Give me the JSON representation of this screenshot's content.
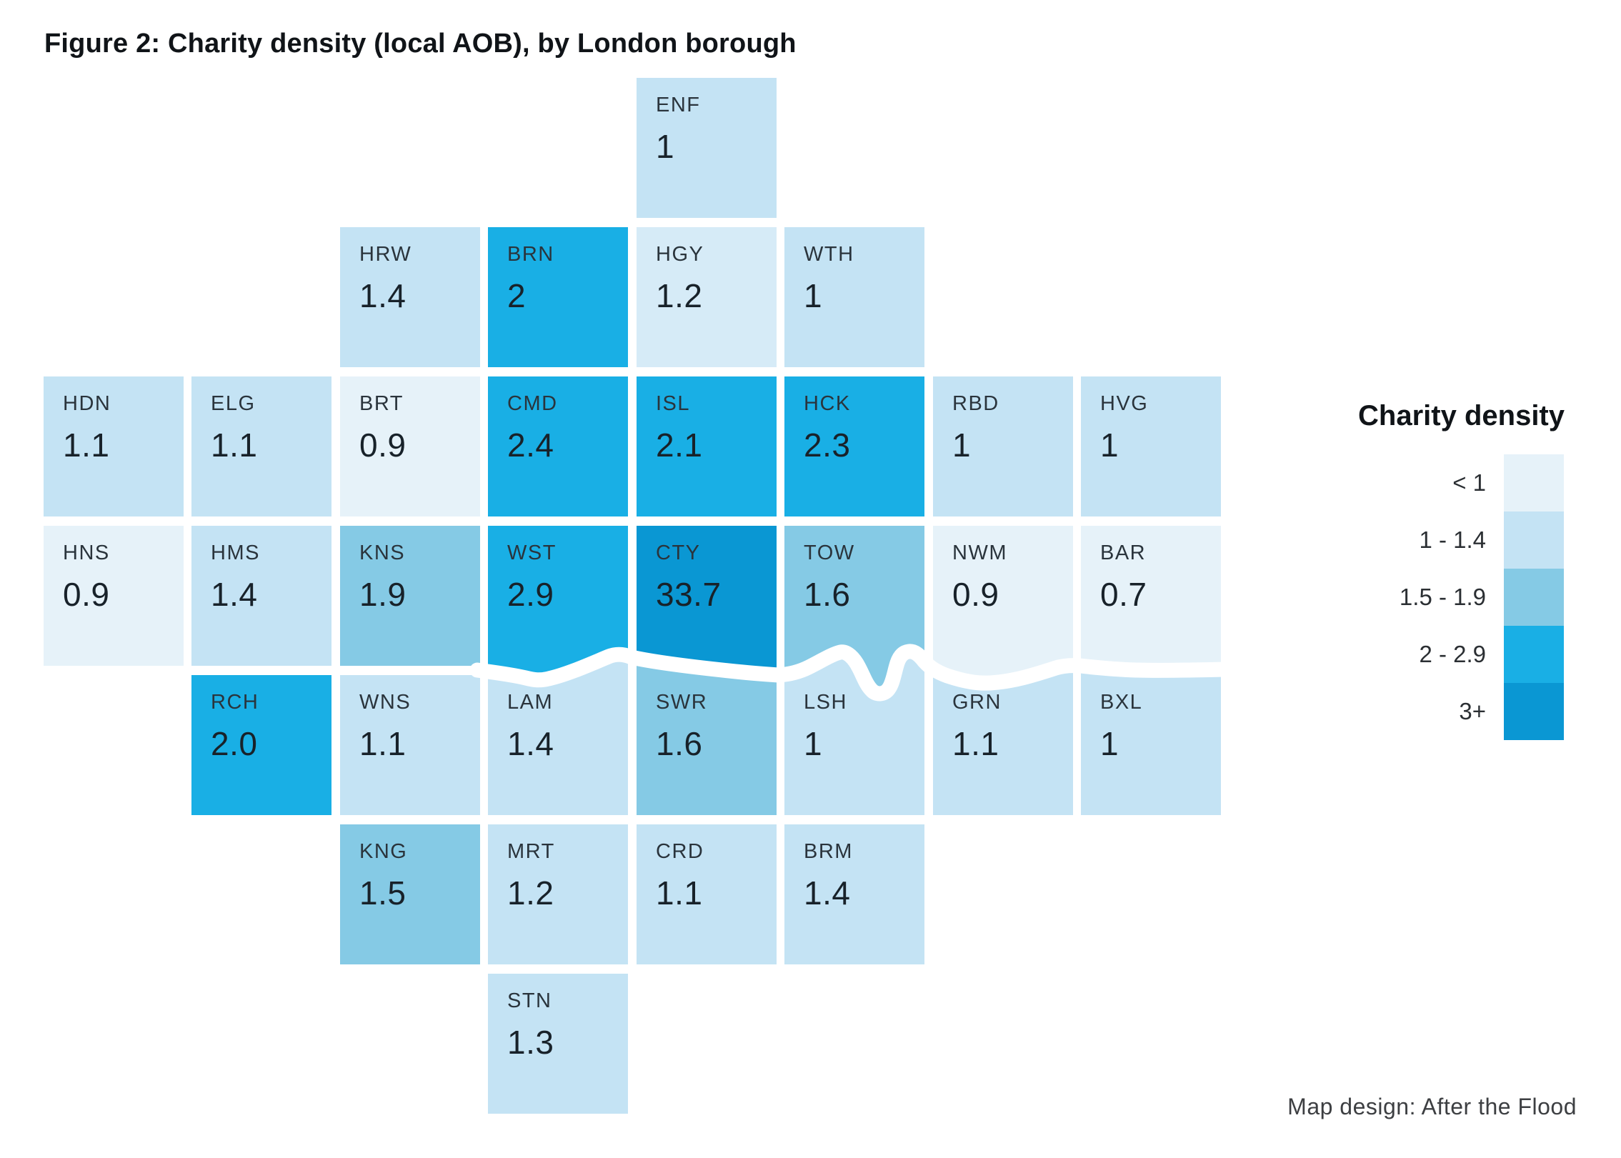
{
  "page": {
    "title": "Figure 2: Charity density (local AOB), by London borough"
  },
  "legend": {
    "title": "Charity density",
    "bins": [
      {
        "label": "< 1",
        "color_key": "pale"
      },
      {
        "label": "1 - 1.4",
        "color_key": "light"
      },
      {
        "label": "1.5 - 1.9",
        "color_key": "medium"
      },
      {
        "label": "2 - 2.9",
        "color_key": "bright"
      },
      {
        "label": "3+",
        "color_key": "dark"
      }
    ]
  },
  "credit": {
    "text": "Map design: After the Flood"
  },
  "colors": {
    "pale": "#E6F2F9",
    "light": "#C4E3F4",
    "light_alt": "#D6EBF7",
    "medium": "#85CAE5",
    "bright": "#19AFE5",
    "dark": "#0A97D3",
    "river": "#FFFFFF",
    "label_text": "#2A343C",
    "value_text": "#18222A"
  },
  "chart_data": {
    "type": "heatmap",
    "variant": "tile-grid-cartogram",
    "title": "Figure 2: Charity density (local AOB), by London borough",
    "legend_title": "Charity density",
    "legend_position": "right",
    "bin_ranges": [
      "< 1",
      "1 - 1.4",
      "1.5 - 1.9",
      "2 - 2.9",
      "3+"
    ],
    "river_annotation": "River Thames shown as white line between north and south boroughs",
    "boroughs": [
      {
        "code": "ENF",
        "value": 1,
        "display": "1",
        "row": 1,
        "col": 5,
        "color_key": "light"
      },
      {
        "code": "HRW",
        "value": 1.4,
        "display": "1.4",
        "row": 2,
        "col": 3,
        "color_key": "light"
      },
      {
        "code": "BRN",
        "value": 2,
        "display": "2",
        "row": 2,
        "col": 4,
        "color_key": "bright"
      },
      {
        "code": "HGY",
        "value": 1.2,
        "display": "1.2",
        "row": 2,
        "col": 5,
        "color_key": "light_alt"
      },
      {
        "code": "WTH",
        "value": 1,
        "display": "1",
        "row": 2,
        "col": 6,
        "color_key": "light"
      },
      {
        "code": "HDN",
        "value": 1.1,
        "display": "1.1",
        "row": 3,
        "col": 1,
        "color_key": "light"
      },
      {
        "code": "ELG",
        "value": 1.1,
        "display": "1.1",
        "row": 3,
        "col": 2,
        "color_key": "light"
      },
      {
        "code": "BRT",
        "value": 0.9,
        "display": "0.9",
        "row": 3,
        "col": 3,
        "color_key": "pale"
      },
      {
        "code": "CMD",
        "value": 2.4,
        "display": "2.4",
        "row": 3,
        "col": 4,
        "color_key": "bright"
      },
      {
        "code": "ISL",
        "value": 2.1,
        "display": "2.1",
        "row": 3,
        "col": 5,
        "color_key": "bright"
      },
      {
        "code": "HCK",
        "value": 2.3,
        "display": "2.3",
        "row": 3,
        "col": 6,
        "color_key": "bright"
      },
      {
        "code": "RBD",
        "value": 1,
        "display": "1",
        "row": 3,
        "col": 7,
        "color_key": "light"
      },
      {
        "code": "HVG",
        "value": 1,
        "display": "1",
        "row": 3,
        "col": 8,
        "color_key": "light"
      },
      {
        "code": "HNS",
        "value": 0.9,
        "display": "0.9",
        "row": 4,
        "col": 1,
        "color_key": "pale"
      },
      {
        "code": "HMS",
        "value": 1.4,
        "display": "1.4",
        "row": 4,
        "col": 2,
        "color_key": "light"
      },
      {
        "code": "KNS",
        "value": 1.9,
        "display": "1.9",
        "row": 4,
        "col": 3,
        "color_key": "medium"
      },
      {
        "code": "WST",
        "value": 2.9,
        "display": "2.9",
        "row": 4,
        "col": 4,
        "color_key": "bright"
      },
      {
        "code": "CTY",
        "value": 33.7,
        "display": "33.7",
        "row": 4,
        "col": 5,
        "color_key": "dark"
      },
      {
        "code": "TOW",
        "value": 1.6,
        "display": "1.6",
        "row": 4,
        "col": 6,
        "color_key": "medium"
      },
      {
        "code": "NWM",
        "value": 0.9,
        "display": "0.9",
        "row": 4,
        "col": 7,
        "color_key": "pale"
      },
      {
        "code": "BAR",
        "value": 0.7,
        "display": "0.7",
        "row": 4,
        "col": 8,
        "color_key": "pale"
      },
      {
        "code": "RCH",
        "value": 2.0,
        "display": "2.0",
        "row": 5,
        "col": 2,
        "color_key": "bright"
      },
      {
        "code": "WNS",
        "value": 1.1,
        "display": "1.1",
        "row": 5,
        "col": 3,
        "color_key": "light"
      },
      {
        "code": "LAM",
        "value": 1.4,
        "display": "1.4",
        "row": 5,
        "col": 4,
        "color_key": "light"
      },
      {
        "code": "SWR",
        "value": 1.6,
        "display": "1.6",
        "row": 5,
        "col": 5,
        "color_key": "medium"
      },
      {
        "code": "LSH",
        "value": 1,
        "display": "1",
        "row": 5,
        "col": 6,
        "color_key": "light"
      },
      {
        "code": "GRN",
        "value": 1.1,
        "display": "1.1",
        "row": 5,
        "col": 7,
        "color_key": "light"
      },
      {
        "code": "BXL",
        "value": 1,
        "display": "1",
        "row": 5,
        "col": 8,
        "color_key": "light"
      },
      {
        "code": "KNG",
        "value": 1.5,
        "display": "1.5",
        "row": 6,
        "col": 3,
        "color_key": "medium"
      },
      {
        "code": "MRT",
        "value": 1.2,
        "display": "1.2",
        "row": 6,
        "col": 4,
        "color_key": "light"
      },
      {
        "code": "CRD",
        "value": 1.1,
        "display": "1.1",
        "row": 6,
        "col": 5,
        "color_key": "light"
      },
      {
        "code": "BRM",
        "value": 1.4,
        "display": "1.4",
        "row": 6,
        "col": 6,
        "color_key": "light"
      },
      {
        "code": "STN",
        "value": 1.3,
        "display": "1.3",
        "row": 7,
        "col": 4,
        "color_key": "light"
      }
    ]
  }
}
